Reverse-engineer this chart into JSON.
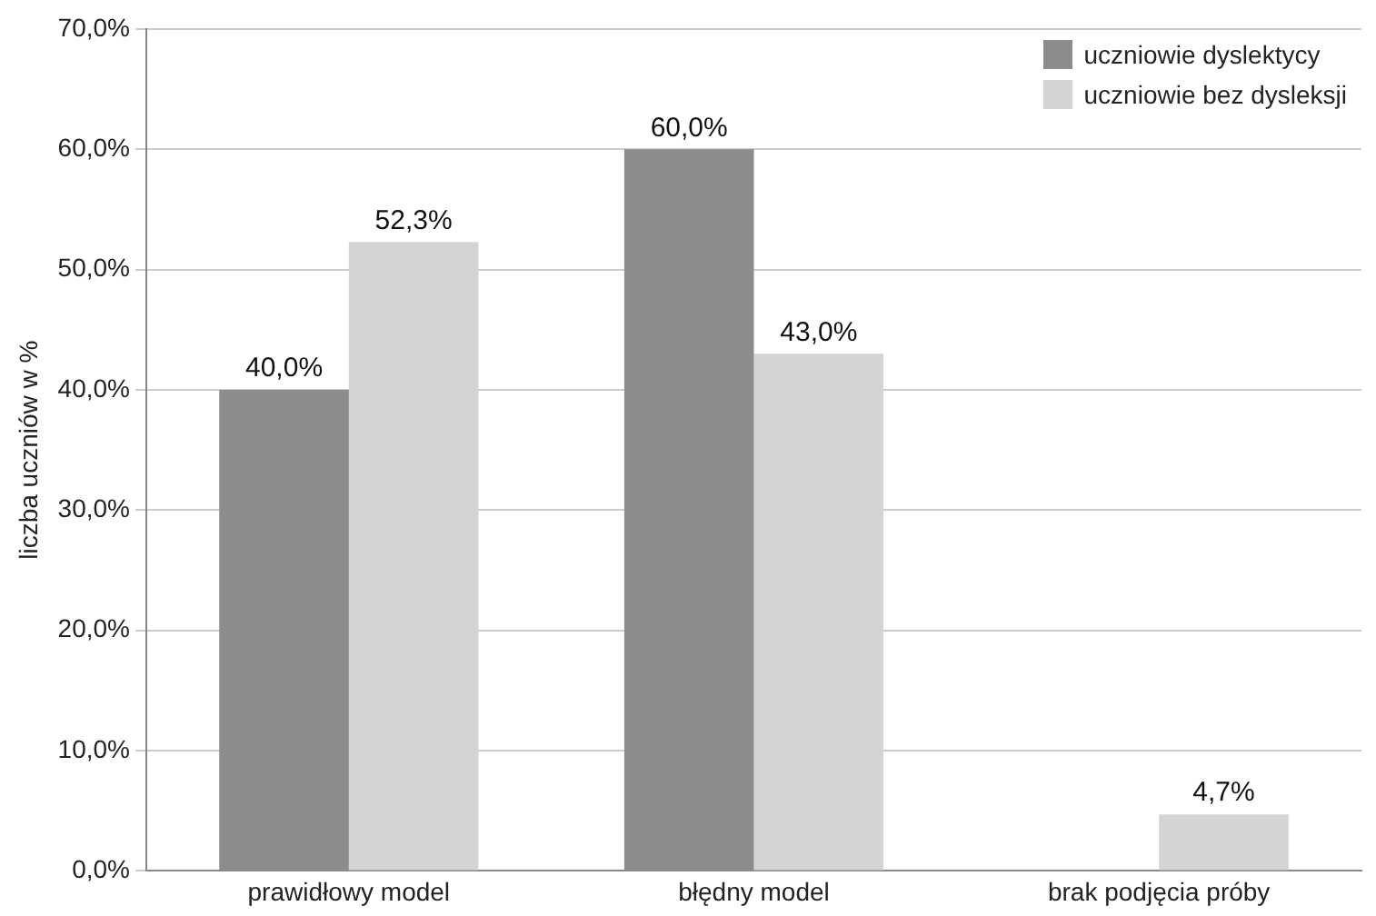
{
  "chart_data": {
    "type": "bar",
    "ylabel": "liczba uczniów w %",
    "categories": [
      "prawidłowy model",
      "błędny model",
      "brak podjęcia próby"
    ],
    "series": [
      {
        "name": "uczniowie dyslektycy",
        "color": "#8c8c8f",
        "values": [
          40.0,
          60.0,
          null
        ],
        "value_labels": [
          "40,0%",
          "60,0%",
          null
        ]
      },
      {
        "name": "uczniowie bez dysleksji",
        "color": "#d4d4d6",
        "values": [
          52.3,
          43.0,
          4.7
        ],
        "value_labels": [
          "52,3%",
          "43,0%",
          "4,7%"
        ]
      }
    ],
    "ylim": [
      0,
      70
    ],
    "yticks": [
      {
        "value": 0,
        "label": "0,0%"
      },
      {
        "value": 10,
        "label": "10,0%"
      },
      {
        "value": 20,
        "label": "20,0%"
      },
      {
        "value": 30,
        "label": "30,0%"
      },
      {
        "value": 40,
        "label": "40,0%"
      },
      {
        "value": 50,
        "label": "50,0%"
      },
      {
        "value": 60,
        "label": "60,0%"
      },
      {
        "value": 70,
        "label": "70,0%"
      }
    ],
    "grid": "y",
    "legend": "top right"
  }
}
